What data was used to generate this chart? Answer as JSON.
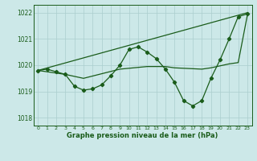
{
  "xlabel": "Graphe pression niveau de la mer (hPa)",
  "ylim": [
    1017.7,
    1022.3
  ],
  "xlim": [
    -0.5,
    23.5
  ],
  "yticks": [
    1018,
    1019,
    1020,
    1021,
    1022
  ],
  "xticks": [
    0,
    1,
    2,
    3,
    4,
    5,
    6,
    7,
    8,
    9,
    10,
    11,
    12,
    13,
    14,
    15,
    16,
    17,
    18,
    19,
    20,
    21,
    22,
    23
  ],
  "bg_color": "#cce8e8",
  "grid_color": "#aacece",
  "line_color": "#1a5c1a",
  "line_detailed": {
    "x": [
      0,
      1,
      2,
      3,
      4,
      5,
      6,
      7,
      8,
      9,
      10,
      11,
      12,
      13,
      14,
      15,
      16,
      17,
      18,
      19,
      20,
      21,
      22,
      23
    ],
    "y": [
      1019.8,
      1019.85,
      1019.75,
      1019.65,
      1019.2,
      1019.05,
      1019.1,
      1019.25,
      1019.6,
      1020.0,
      1020.6,
      1020.7,
      1020.5,
      1020.25,
      1019.85,
      1019.35,
      1018.65,
      1018.45,
      1018.65,
      1019.5,
      1020.2,
      1021.0,
      1021.85,
      1021.95
    ]
  },
  "line_straight": {
    "x": [
      0,
      23
    ],
    "y": [
      1019.8,
      1022.0
    ]
  },
  "line_smooth": {
    "x": [
      0,
      3,
      5,
      9,
      12,
      14,
      15,
      18,
      19,
      21,
      22,
      23
    ],
    "y": [
      1019.8,
      1019.65,
      1019.5,
      1019.85,
      1019.95,
      1019.95,
      1019.9,
      1019.85,
      1019.9,
      1020.05,
      1020.1,
      1021.9
    ]
  }
}
